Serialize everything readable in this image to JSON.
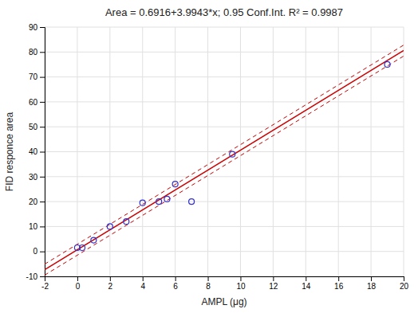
{
  "chart_data": {
    "type": "scatter",
    "title": "Area = 0.6916+3.9943*x; 0.95 Conf.Int. R² = 0.9987",
    "x_label": "AMPL (μg)",
    "y_label": "FID responce area",
    "xlim": [
      -2,
      20
    ],
    "ylim": [
      -10,
      90
    ],
    "xticks": [
      -2,
      0,
      2,
      4,
      6,
      8,
      10,
      12,
      14,
      16,
      18,
      20
    ],
    "yticks": [
      -10,
      0,
      10,
      20,
      30,
      40,
      50,
      60,
      70,
      80,
      90
    ],
    "grid": true,
    "series": [
      {
        "type": "line",
        "color": "#cc0000",
        "line_style": "dashed",
        "x": [
          -2,
          20
        ],
        "values": [
          -5.097,
          82.7776
        ]
      },
      {
        "type": "line",
        "color": "#cc0000",
        "line_style": "dashed",
        "x": [
          -2,
          20
        ],
        "values": [
          -9.497,
          78.3776
        ]
      },
      {
        "type": "line",
        "color": "#cc0000",
        "line_style": "solid",
        "x": [
          -2,
          20
        ],
        "values": [
          -7.297,
          80.5776
        ]
      },
      {
        "type": "scatter",
        "color": "#3333cc",
        "marker": "circle",
        "x": [
          0.0,
          0.3,
          1.0,
          2.0,
          3.0,
          4.0,
          5.0,
          5.5,
          6.0,
          7.0,
          9.5,
          19.0
        ],
        "values": [
          1.5,
          1.5,
          4.5,
          10.0,
          12.0,
          19.5,
          20.0,
          21.0,
          27.0,
          20.0,
          39.0,
          75.0
        ]
      }
    ]
  }
}
